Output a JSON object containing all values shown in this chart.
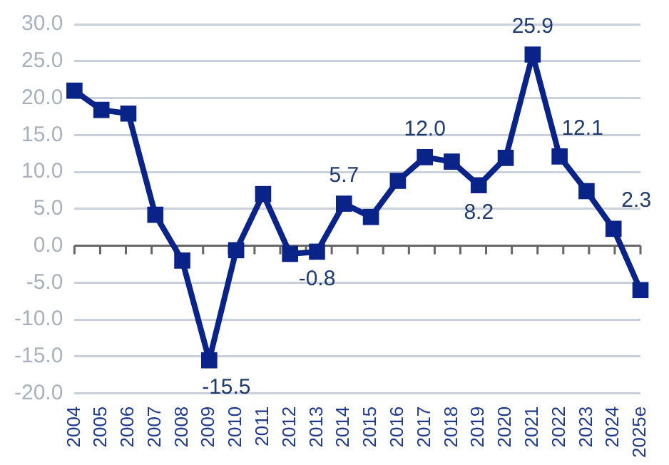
{
  "chart_data": {
    "type": "line",
    "categories": [
      "2004",
      "2005",
      "2006",
      "2007",
      "2008",
      "2009",
      "2010",
      "2011",
      "2012",
      "2013",
      "2014",
      "2015",
      "2016",
      "2017",
      "2018",
      "2019",
      "2020",
      "2021",
      "2022",
      "2023",
      "2024",
      "2025e"
    ],
    "series": [
      {
        "color": "#0a2389",
        "values": [
          21.0,
          18.4,
          17.9,
          4.2,
          -2.0,
          -15.5,
          -0.6,
          7.0,
          -1.1,
          -0.8,
          5.7,
          3.9,
          8.8,
          12.0,
          11.4,
          8.2,
          11.9,
          25.9,
          12.1,
          7.4,
          2.3,
          -6.0
        ],
        "value_labels": [
          null,
          null,
          null,
          null,
          null,
          "-15.5",
          null,
          null,
          null,
          "-0.8",
          "5.7",
          null,
          null,
          "12.0",
          null,
          "8.2",
          null,
          "25.9",
          "12.1",
          null,
          "2.3",
          null
        ]
      }
    ],
    "ylim": [
      -20,
      30
    ],
    "yticks": [
      {
        "value": -20,
        "label": "-20.0"
      },
      {
        "value": -15,
        "label": "-15.0"
      },
      {
        "value": -10,
        "label": "-10.0"
      },
      {
        "value": -5,
        "label": "-5.0"
      },
      {
        "value": 0,
        "label": "0.0"
      },
      {
        "value": 5,
        "label": "5.0"
      },
      {
        "value": 10,
        "label": "10.0"
      },
      {
        "value": 15,
        "label": "15.0"
      },
      {
        "value": 20,
        "label": "20.0"
      },
      {
        "value": 25,
        "label": "25.0"
      },
      {
        "value": 30,
        "label": "30.0"
      }
    ],
    "grid": "y",
    "legend": false,
    "marker": "square",
    "line_style": "solid"
  }
}
